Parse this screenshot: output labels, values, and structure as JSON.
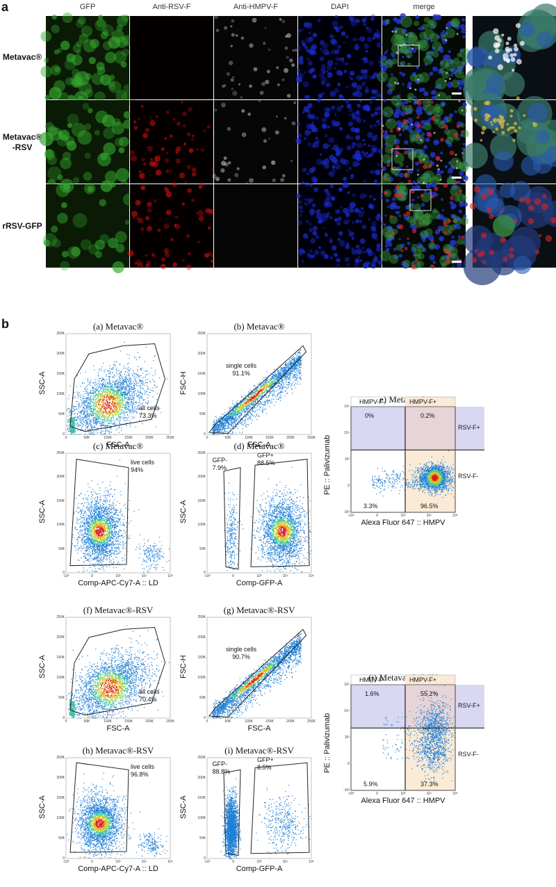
{
  "panel_a": {
    "letter": "a",
    "columns": [
      "GFP",
      "Anti-RSV-F",
      "Anti-HMPV-F",
      "DAPI",
      "merge"
    ],
    "rows": [
      {
        "label_lines": [
          "Metavac®"
        ]
      },
      {
        "label_lines": [
          "Metavac®",
          "-RSV"
        ]
      },
      {
        "label_lines": [
          "rRSV-GFP"
        ]
      }
    ]
  },
  "panel_b": {
    "letter": "b",
    "ticks_scatter_y": [
      "250K",
      "200K",
      "150K",
      "100K",
      "50K",
      "0"
    ],
    "ticks_scatter_x": [
      "0",
      "50K",
      "100K",
      "150K",
      "200K",
      "250K"
    ],
    "ticks_log_x": [
      "-10³",
      "0",
      "10³",
      "10⁴",
      "10⁵"
    ],
    "ticks_quad_y": [
      "10⁵",
      "10⁴",
      "10³",
      "0",
      "-10³"
    ],
    "plots": [
      {
        "id": "a",
        "title": "(a)   Metavac®",
        "xlabel": "FSC-A",
        "ylabel": "SSC-A",
        "gates": [
          {
            "text": "all cells\n73.3%"
          }
        ]
      },
      {
        "id": "b",
        "title": "(b)   Metavac®",
        "xlabel": "FSC-A",
        "ylabel": "FSC-H",
        "gates": [
          {
            "text": "single cells\n91.1%"
          }
        ]
      },
      {
        "id": "c",
        "title": "(c)   Metavac®",
        "xlabel": "Comp-APC-Cy7-A :: LD",
        "ylabel": "SSC-A",
        "gates": [
          {
            "text": "live cells\n94%"
          }
        ]
      },
      {
        "id": "d",
        "title": "(d)   Metavac®",
        "xlabel": "Comp-GFP-A",
        "ylabel": "SSC-A",
        "gates": [
          {
            "text": "GFP-\n7.9%"
          },
          {
            "text": "GFP+\n88.5%"
          }
        ]
      },
      {
        "id": "e",
        "title": "e)   Metavac®",
        "xlabel": "Alexa Fluor 647 :: HMPV",
        "ylabel": "PE :: Palivizumab",
        "top_left": "HMPV-F-",
        "top_right": "HMPV-F+",
        "right_top": "RSV-F+",
        "right_bottom": "RSV-F-",
        "q": {
          "ul": "0%",
          "ur": "0.2%",
          "ll": "3.3%",
          "lr": "96.5%"
        }
      },
      {
        "id": "f",
        "title": "(f)   Metavac®-RSV",
        "xlabel": "FSC-A",
        "ylabel": "SSC-A",
        "gates": [
          {
            "text": "all cells\n70.4%"
          }
        ]
      },
      {
        "id": "g",
        "title": "(g)   Metavac®-RSV",
        "xlabel": "FSC-A",
        "ylabel": "FSC-H",
        "gates": [
          {
            "text": "single cells\n90.7%"
          }
        ]
      },
      {
        "id": "h",
        "title": "(h)   Metavac®-RSV",
        "xlabel": "Comp-APC-Cy7-A :: LD",
        "ylabel": "SSC-A",
        "gates": [
          {
            "text": "live cells\n96.8%"
          }
        ]
      },
      {
        "id": "i",
        "title": "(i)   Metavac®-RSV",
        "xlabel": "Comp-GFP-A",
        "ylabel": "SSC-A",
        "gates": [
          {
            "text": "GFP-\n88.8%"
          },
          {
            "text": "GFP+\n8.5%"
          }
        ]
      },
      {
        "id": "j",
        "title": "(j)   Metavac®-RSV",
        "xlabel": "Alexa Fluor 647 :: HMPV",
        "ylabel": "PE :: Palivizumab",
        "top_left": "HMPV-F-",
        "top_right": "HMPV-F+",
        "right_top": "RSV-F+",
        "right_bottom": "RSV-F-",
        "q": {
          "ul": "1.6%",
          "ur": "55.2%",
          "ll": "5.9%",
          "lr": "37.3%"
        }
      }
    ]
  }
}
